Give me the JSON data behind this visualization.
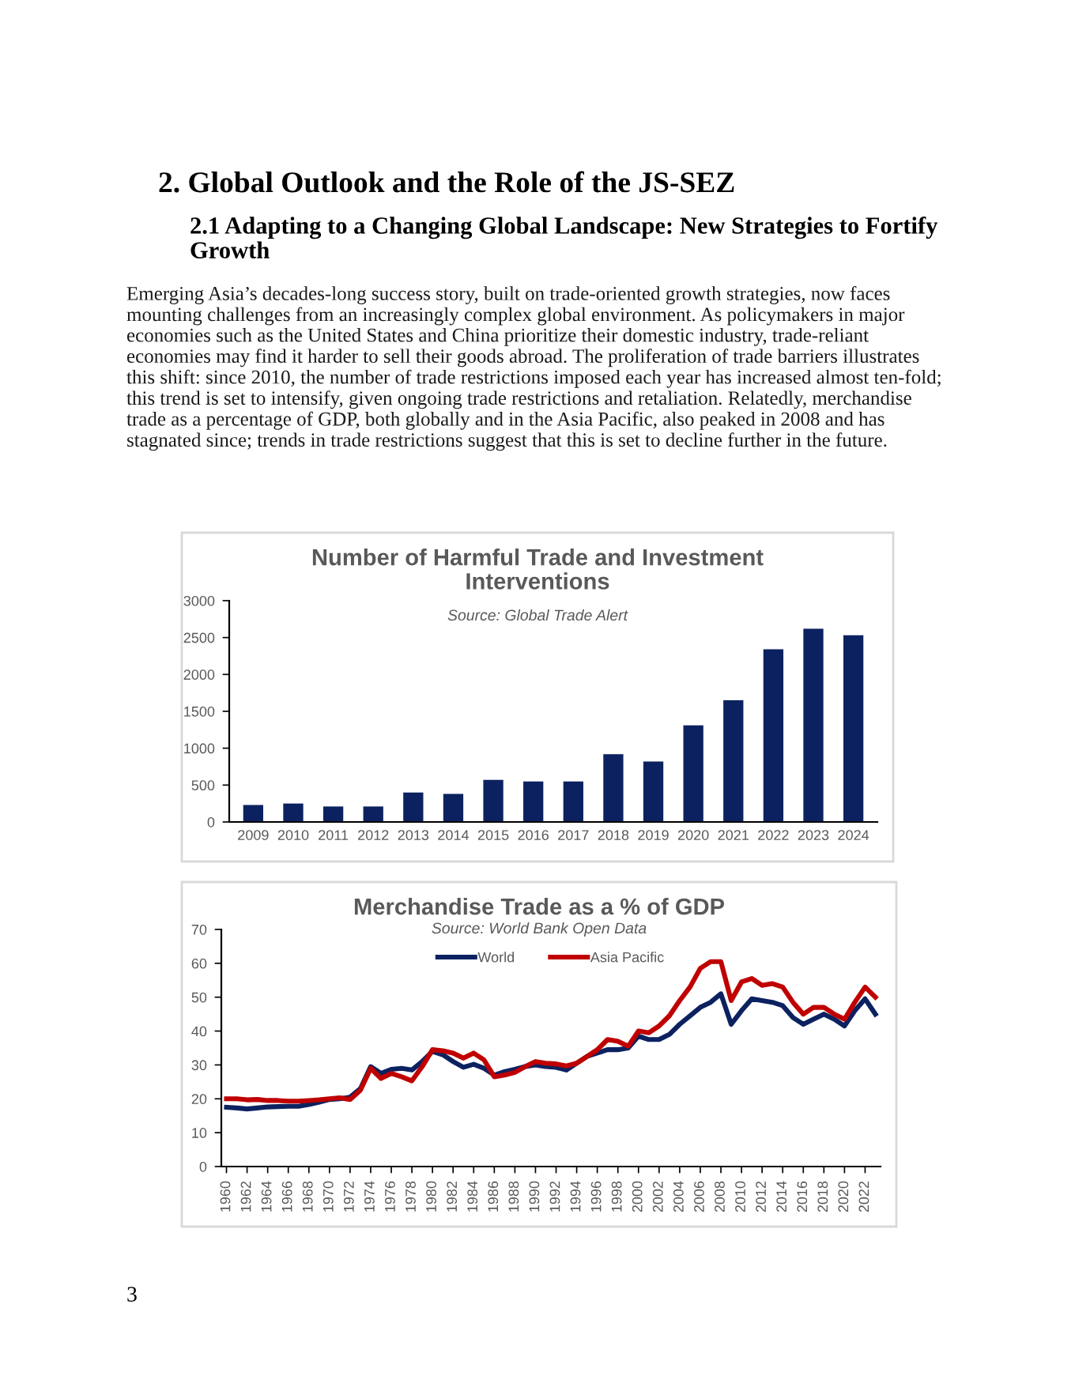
{
  "chart_data": [
    {
      "type": "bar",
      "title": "Number of Harmful Trade and Investment Interventions",
      "subtitle": "Source: Global Trade Alert",
      "categories": [
        "2009",
        "2010",
        "2011",
        "2012",
        "2013",
        "2014",
        "2015",
        "2016",
        "2017",
        "2018",
        "2019",
        "2020",
        "2021",
        "2022",
        "2023",
        "2024"
      ],
      "values": [
        230,
        250,
        210,
        210,
        400,
        380,
        570,
        550,
        550,
        920,
        820,
        1310,
        1650,
        2340,
        2620,
        2530
      ],
      "color": "#0c2260",
      "ylim": [
        0,
        3000
      ],
      "yticks": [
        0,
        500,
        1000,
        1500,
        2000,
        2500,
        3000
      ],
      "grid": false,
      "annotations": [
        "2. Global Outlook and the Role of the JS-SEZ",
        "2.1 Adapting to a Changing Global Landscape: New Strategies to Fortify Growth",
        "Emerging Asia’s decades-long success story, built on trade-oriented growth strategies, now faces mounting challenges from an increasingly complex global environment. As policymakers in major economies such as the United States and China prioritize their domestic industry, trade-reliant economies may find it harder to sell their goods abroad. The proliferation of trade barriers illustrates this shift: since 2010, the number of trade restrictions imposed each year has increased almost ten-fold; this trend is set to intensify, given ongoing trade restrictions and retaliation. Relatedly, merchandise trade as a percentage of GDP, both globally and in the Asia Pacific, also peaked in 2008 and has stagnated since; trends in trade restrictions suggest that this is set to decline further in the future."
      ]
    },
    {
      "type": "line",
      "title": "Merchandise Trade as a % of GDP",
      "subtitle": "Source: World Bank Open Data",
      "x": [
        1960,
        1961,
        1962,
        1963,
        1964,
        1965,
        1966,
        1967,
        1968,
        1969,
        1970,
        1971,
        1972,
        1973,
        1974,
        1975,
        1976,
        1977,
        1978,
        1979,
        1980,
        1981,
        1982,
        1983,
        1984,
        1985,
        1986,
        1987,
        1988,
        1989,
        1990,
        1991,
        1992,
        1993,
        1994,
        1995,
        1996,
        1997,
        1998,
        1999,
        2000,
        2001,
        2002,
        2003,
        2004,
        2005,
        2006,
        2007,
        2008,
        2009,
        2010,
        2011,
        2012,
        2013,
        2014,
        2015,
        2016,
        2017,
        2018,
        2019,
        2020,
        2021,
        2022,
        2023
      ],
      "series": [
        {
          "name": "World",
          "color": "#0c2260",
          "values": [
            17.5,
            17.3,
            17.0,
            17.3,
            17.6,
            17.7,
            17.8,
            17.8,
            18.3,
            19.0,
            19.8,
            20.0,
            20.5,
            23,
            29.5,
            27.5,
            28.7,
            29,
            28.5,
            31,
            34,
            33,
            31,
            29.3,
            30.2,
            29,
            27,
            28,
            28.7,
            29.5,
            30,
            29.5,
            29.3,
            28.5,
            30.5,
            32.5,
            33.5,
            34.5,
            34.5,
            35,
            38.5,
            37.5,
            37.5,
            39,
            42,
            44.5,
            47,
            48.5,
            51,
            42,
            46,
            49.5,
            49,
            48.5,
            47.5,
            44,
            42,
            43.5,
            45,
            43.5,
            41.5,
            46,
            49.5,
            45
          ]
        },
        {
          "name": "Asia Pacific",
          "color": "#c00000",
          "values": [
            20,
            20,
            19.7,
            19.8,
            19.5,
            19.5,
            19.3,
            19.3,
            19.5,
            19.7,
            20,
            20.3,
            19.8,
            22.5,
            29,
            26,
            27.5,
            26.5,
            25.3,
            29.5,
            34.5,
            34.2,
            33.5,
            32,
            33.5,
            31.5,
            26.5,
            27,
            27.8,
            29.5,
            31,
            30.5,
            30.3,
            29.7,
            30.5,
            32.5,
            34.5,
            37.5,
            37,
            35.5,
            40,
            39.5,
            41.5,
            44.5,
            49,
            53,
            58.5,
            60.5,
            60.5,
            49,
            54.5,
            55.5,
            53.5,
            54,
            53,
            48.5,
            45,
            47,
            47,
            45,
            43.5,
            48.5,
            53,
            50
          ]
        }
      ],
      "xlim": [
        1959.5,
        2023.5
      ],
      "xticks": [
        1960,
        1962,
        1964,
        1966,
        1968,
        1970,
        1972,
        1974,
        1976,
        1978,
        1980,
        1982,
        1984,
        1986,
        1988,
        1990,
        1992,
        1994,
        1996,
        1998,
        2000,
        2002,
        2004,
        2006,
        2008,
        2010,
        2012,
        2014,
        2016,
        2018,
        2020,
        2022
      ],
      "ylim": [
        0,
        70
      ],
      "yticks": [
        0,
        10,
        20,
        30,
        40,
        50,
        60,
        70
      ],
      "grid": false,
      "legend": "top",
      "line_style": "solid",
      "marker": "none",
      "annotations": [
        "3"
      ]
    }
  ]
}
